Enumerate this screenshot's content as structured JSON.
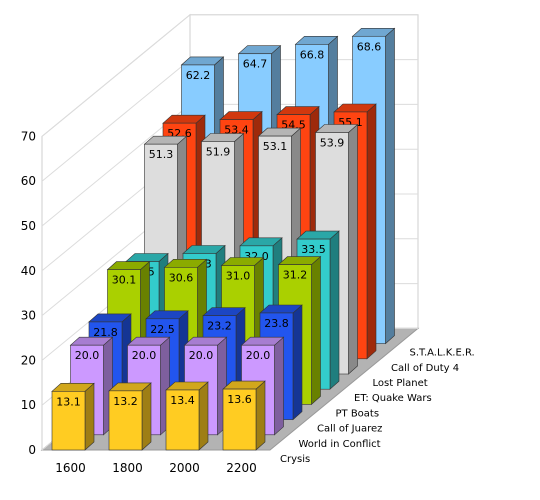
{
  "chart_data": {
    "type": "bar",
    "title": "",
    "xlabel": "",
    "ylabel": "",
    "ylim": [
      0,
      70
    ],
    "yticks": [
      0,
      10,
      20,
      30,
      40,
      50,
      60,
      70
    ],
    "grid": true,
    "categories": [
      "1600",
      "1800",
      "2000",
      "2200"
    ],
    "series": [
      {
        "name": "Crysis",
        "color": "#ffcc22",
        "values": [
          13.1,
          13.2,
          13.4,
          13.6
        ]
      },
      {
        "name": "World in Conflict",
        "color": "#cc99ff",
        "values": [
          20.0,
          20.0,
          20.0,
          20.0
        ]
      },
      {
        "name": "Call of Juarez",
        "color": "#2255ee",
        "values": [
          21.8,
          22.5,
          23.2,
          23.8
        ]
      },
      {
        "name": "PT Boats",
        "color": "#aad000",
        "values": [
          30.1,
          30.6,
          31.0,
          31.2
        ]
      },
      {
        "name": "ET: Quake Wars",
        "color": "#33cccc",
        "values": [
          28.5,
          30.3,
          32.0,
          33.5
        ]
      },
      {
        "name": "Lost Planet",
        "color": "#dddddd",
        "values": [
          51.3,
          51.9,
          53.1,
          53.9
        ]
      },
      {
        "name": "Call of Duty 4",
        "color": "#ff4411",
        "values": [
          52.6,
          53.4,
          54.5,
          55.1
        ]
      },
      {
        "name": "S.T.A.L.K.E.R.",
        "color": "#88ccff",
        "values": [
          62.2,
          64.7,
          66.8,
          68.6
        ]
      }
    ]
  }
}
